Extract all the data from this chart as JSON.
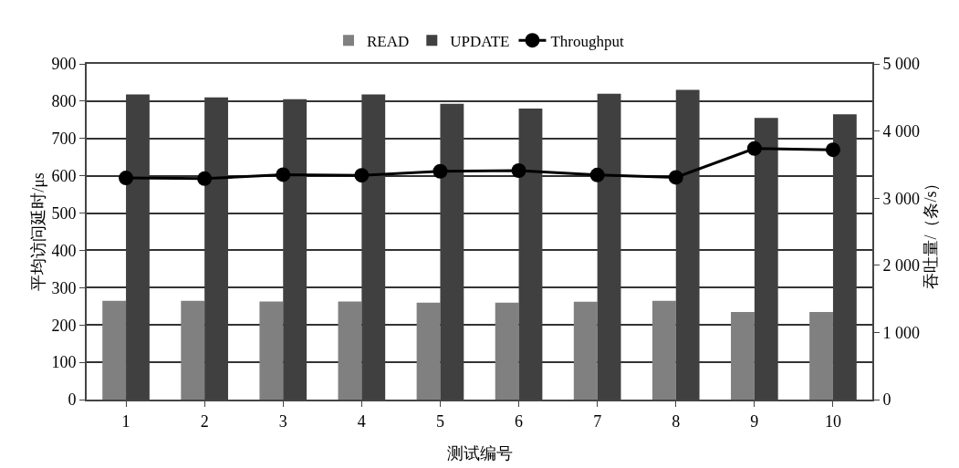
{
  "chart_data": {
    "type": "bar",
    "xlabel": "测试编号",
    "ylabel": "平均访问延时/μs",
    "y2label": "吞吐量/（条/s）",
    "categories": [
      "1",
      "2",
      "3",
      "4",
      "5",
      "6",
      "7",
      "8",
      "9",
      "10"
    ],
    "series": [
      {
        "name": "READ",
        "color": "#808080",
        "values": [
          265,
          265,
          263,
          263,
          260,
          260,
          262,
          265,
          235,
          235
        ]
      },
      {
        "name": "UPDATE",
        "color": "#404040",
        "values": [
          818,
          810,
          805,
          818,
          793,
          780,
          820,
          830,
          755,
          765
        ]
      },
      {
        "name": "Throughput",
        "type": "line",
        "axis": "y2",
        "color": "#000000",
        "marker": "circle",
        "values": [
          3300,
          3290,
          3350,
          3340,
          3400,
          3410,
          3345,
          3310,
          3740,
          3720
        ]
      }
    ],
    "ylim": [
      0,
      900
    ],
    "yticks": [
      0,
      100,
      200,
      300,
      400,
      500,
      600,
      700,
      800,
      900
    ],
    "y2lim": [
      0,
      5000
    ],
    "y2ticks": [
      0,
      {
        "value": 1000,
        "label": "1 000"
      },
      {
        "value": 2000,
        "label": "2 000"
      },
      {
        "value": 3000,
        "label": "3 000"
      },
      {
        "value": 4000,
        "label": "4 000"
      },
      {
        "value": 5000,
        "label": "5 000"
      }
    ],
    "grid": "y",
    "legend": "top"
  }
}
